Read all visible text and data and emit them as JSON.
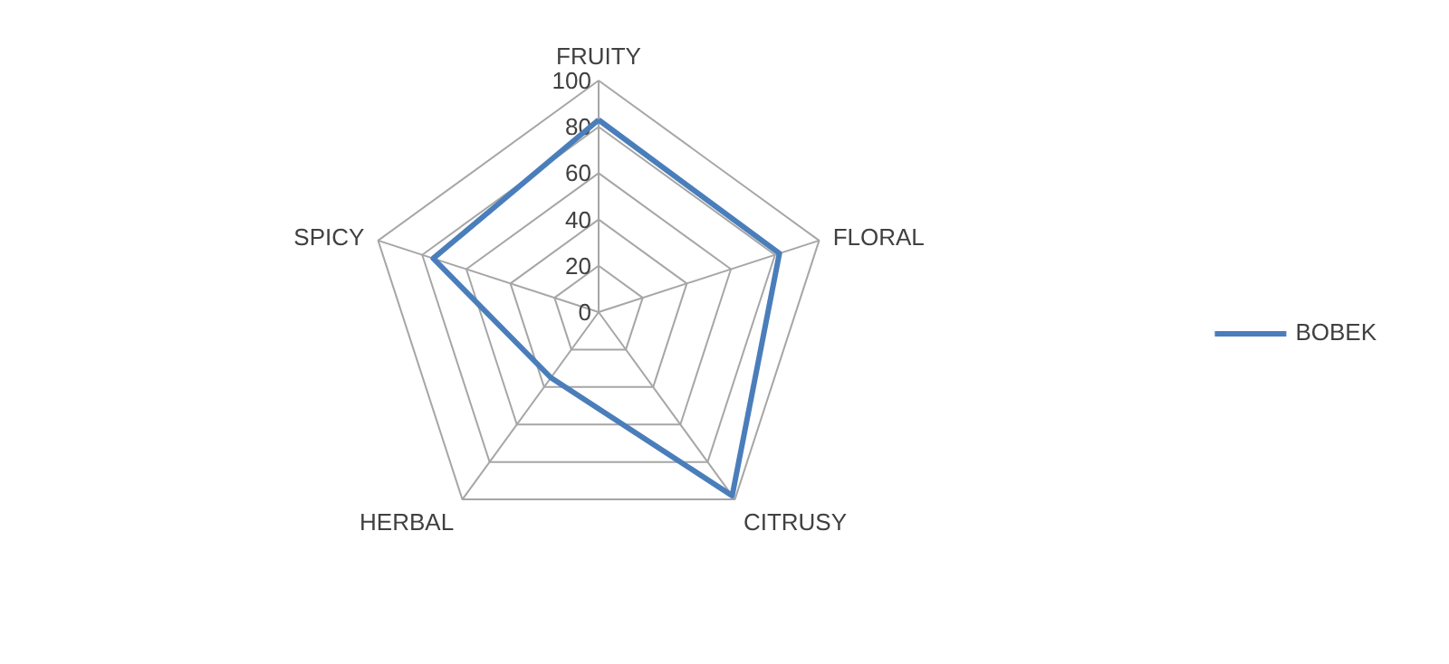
{
  "chart_data": {
    "type": "radar",
    "categories": [
      "FRUITY",
      "FLORAL",
      "CITRUSY",
      "HERBAL",
      "SPICY"
    ],
    "series": [
      {
        "name": "BOBEK",
        "color": "#4a7ebb",
        "values": [
          83,
          82,
          98,
          35,
          75
        ]
      }
    ],
    "ylim": [
      0,
      100
    ],
    "yticks": [
      0,
      20,
      40,
      60,
      80,
      100
    ],
    "grid": true,
    "legend": "right"
  }
}
